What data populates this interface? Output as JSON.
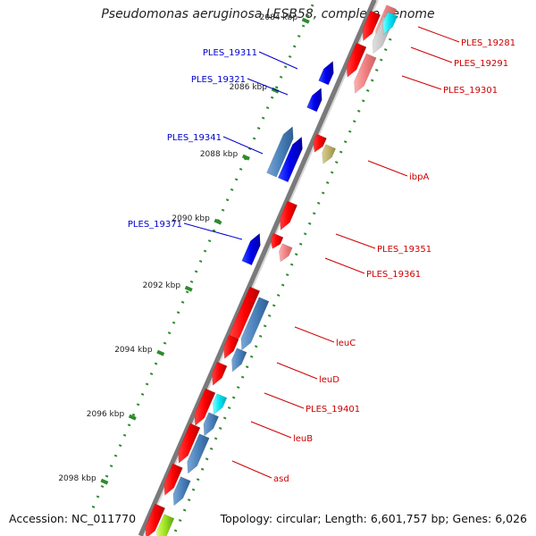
{
  "title": "Pseudomonas aeruginosa LESB58, complete genome",
  "accession_text": "Accession: NC_011770",
  "info_text": "Topology: circular; Length: 6,601,757 bp; Genes: 6,026",
  "colors": {
    "backbone": "#888888",
    "tick": "#2e8b2e",
    "plus_label": "#0000cc",
    "minus_label": "#cc0000"
  },
  "kbp_ticks": [
    "2084 kbp",
    "2086 kbp",
    "2088 kbp",
    "2090 kbp",
    "2092 kbp",
    "2094 kbp",
    "2096 kbp",
    "2098 kbp"
  ],
  "plus_labels": [
    "PLES_19311",
    "PLES_19321",
    "PLES_19341",
    "PLES_19371"
  ],
  "minus_labels": [
    "PLES_19281",
    "PLES_19291",
    "PLES_19301",
    "ibpA",
    "PLES_19351",
    "PLES_19361",
    "leuC",
    "leuD",
    "PLES_19401",
    "leuB",
    "asd"
  ]
}
